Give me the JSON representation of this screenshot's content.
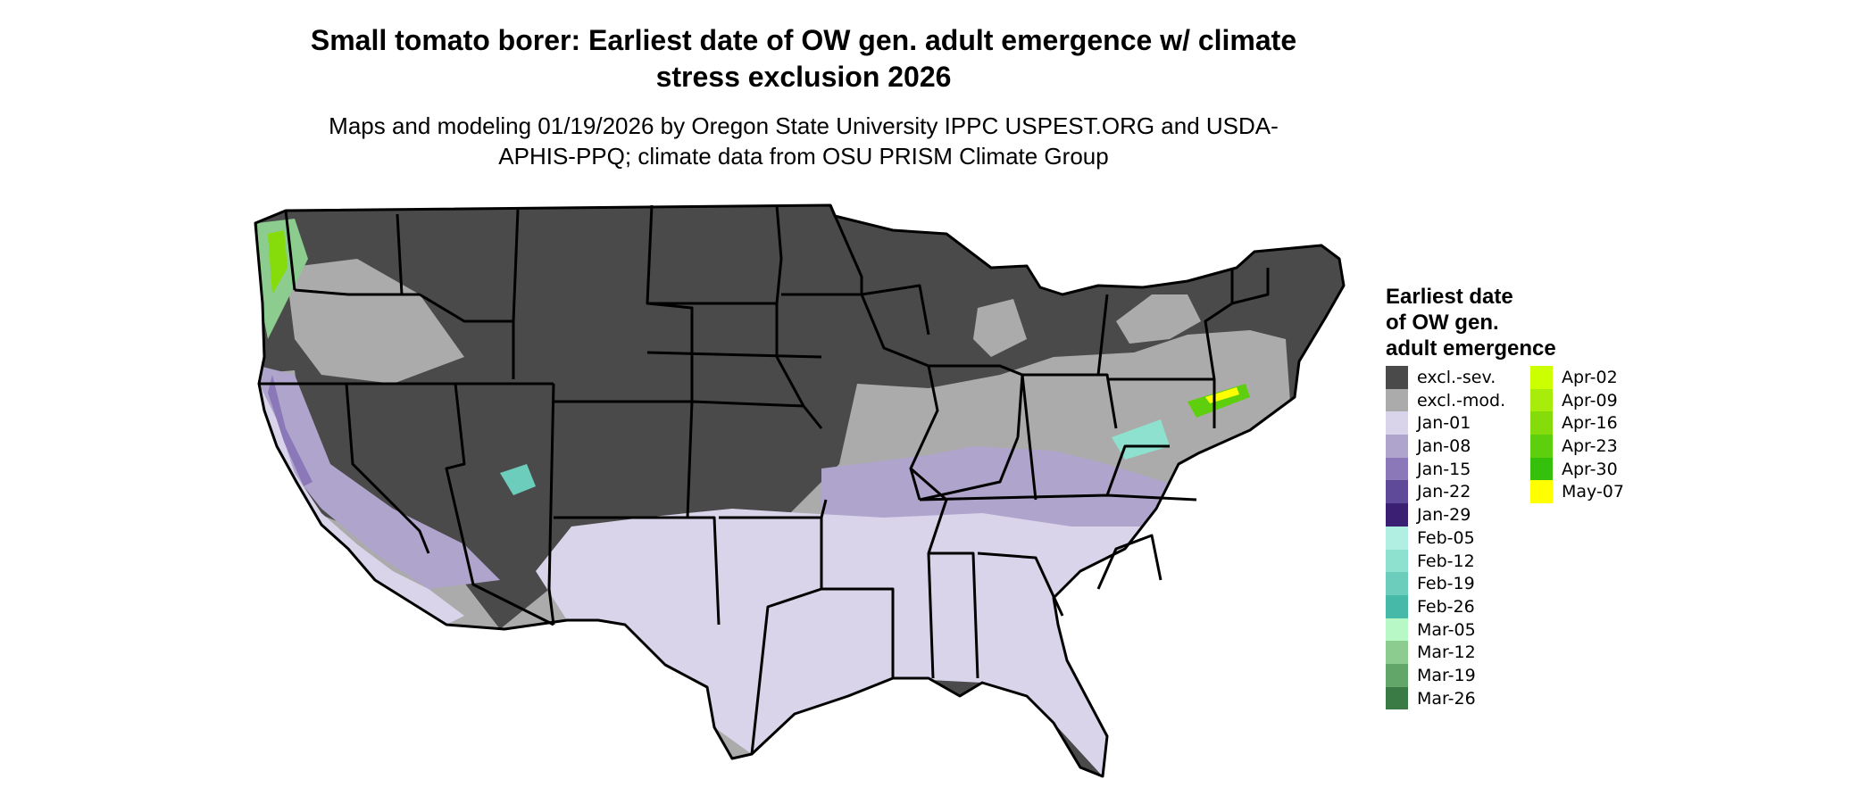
{
  "title": "Small tomato borer: Earliest date of OW gen. adult emergence w/ climate stress exclusion 2026",
  "subtitle": "Maps and modeling 01/19/2026 by Oregon State University IPPC USPEST.ORG and USDA-APHIS-PPQ; climate data from OSU PRISM Climate Group",
  "legend": {
    "title_lines": [
      "Earliest date",
      "of OW gen.",
      "adult emergence"
    ],
    "columns": [
      [
        {
          "label": "excl.-sev.",
          "color": "#4a4a4a"
        },
        {
          "label": "excl.-mod.",
          "color": "#ababab"
        },
        {
          "label": "Jan-01",
          "color": "#dad4ea"
        },
        {
          "label": "Jan-08",
          "color": "#afa4cc"
        },
        {
          "label": "Jan-15",
          "color": "#8a78b9"
        },
        {
          "label": "Jan-22",
          "color": "#5f4a9a"
        },
        {
          "label": "Jan-29",
          "color": "#3b1f73"
        },
        {
          "label": "Feb-05",
          "color": "#b1efe3"
        },
        {
          "label": "Feb-12",
          "color": "#8ee0cf"
        },
        {
          "label": "Feb-19",
          "color": "#6ccdbd"
        },
        {
          "label": "Feb-26",
          "color": "#46b9a9"
        },
        {
          "label": "Mar-05",
          "color": "#b8f7c6"
        },
        {
          "label": "Mar-12",
          "color": "#8ccc8e"
        },
        {
          "label": "Mar-19",
          "color": "#62a66a"
        },
        {
          "label": "Mar-26",
          "color": "#3a7a45"
        }
      ],
      [
        {
          "label": "Apr-02",
          "color": "#ccff00"
        },
        {
          "label": "Apr-09",
          "color": "#a8ec0b"
        },
        {
          "label": "Apr-16",
          "color": "#86dc0a"
        },
        {
          "label": "Apr-23",
          "color": "#5ecf0c"
        },
        {
          "label": "Apr-30",
          "color": "#35c10b"
        },
        {
          "label": "May-07",
          "color": "#ffff00"
        }
      ]
    ]
  },
  "map": {
    "colors": {
      "severe_exclusion": "#4a4a4a",
      "moderate_exclusion": "#ababab",
      "early_jan": "#dad4ea",
      "jan_08": "#afa4cc",
      "jan_15": "#8a78b9",
      "feb": "#6ccdbd",
      "mar": "#8ccc8e",
      "apr": "#86dc0a",
      "may": "#ffff00",
      "borders": "#000000"
    }
  }
}
